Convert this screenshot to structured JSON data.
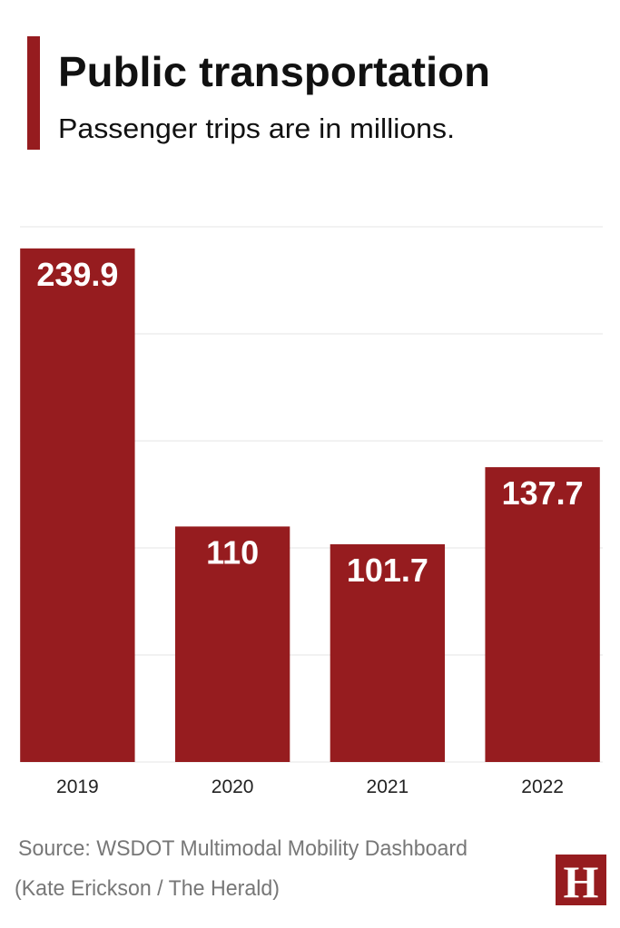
{
  "chart_data": {
    "type": "bar",
    "title": "Public transportation",
    "subtitle": "Passenger trips are in millions.",
    "categories": [
      "2019",
      "2020",
      "2021",
      "2022"
    ],
    "values": [
      239.9,
      110,
      101.7,
      137.7
    ],
    "color": "#961c1f",
    "ylim": [
      0,
      250
    ],
    "yticks": [
      0,
      50,
      100,
      150,
      200,
      250
    ],
    "grid": true,
    "source": "Source: WSDOT Multimodal Mobility Dashboard",
    "credit": "(Kate Erickson / The Herald)",
    "logo": "H"
  }
}
